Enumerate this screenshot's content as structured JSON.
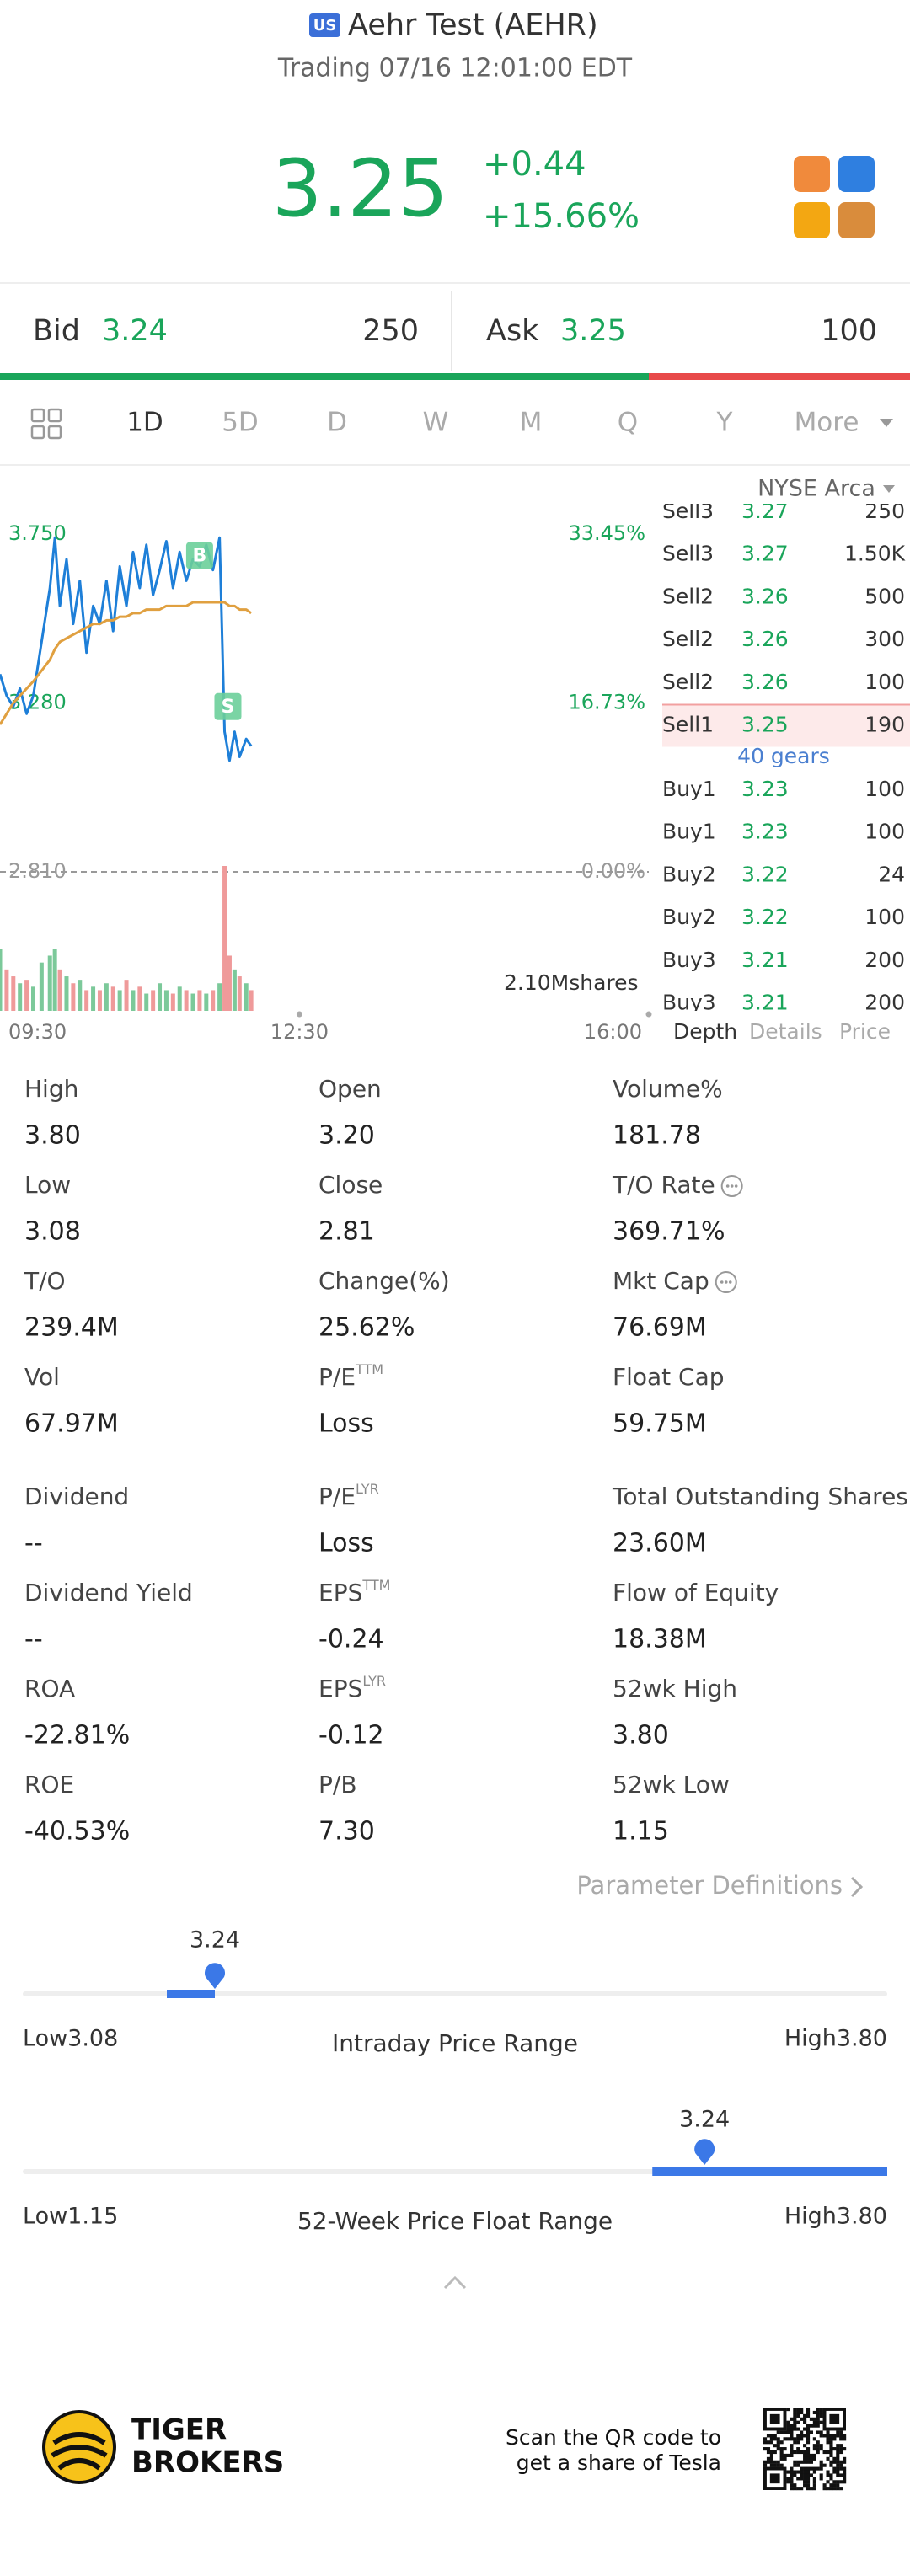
{
  "header": {
    "badge": "US",
    "title": "Aehr Test (AEHR)",
    "status": "Trading 07/16 12:01:00 EDT"
  },
  "quote": {
    "price": "3.25",
    "change": "+0.44",
    "change_pct": "+15.66%"
  },
  "bid_ask": {
    "bid_label": "Bid",
    "bid_price": "3.24",
    "bid_size": "250",
    "ask_label": "Ask",
    "ask_price": "3.25",
    "ask_size": "100"
  },
  "tabs": {
    "items": [
      "1D",
      "5D",
      "D",
      "W",
      "M",
      "Q",
      "Y",
      "More"
    ],
    "active": 0
  },
  "exchange": "NYSE Arca",
  "chart_data": {
    "type": "line",
    "x": [
      0,
      4,
      8,
      12,
      16,
      20,
      25,
      30,
      33,
      36,
      40,
      44,
      48,
      52,
      56,
      60,
      64,
      68,
      72,
      76,
      80,
      84,
      88,
      92,
      96,
      100,
      104,
      108,
      112,
      116,
      120,
      124,
      128,
      132,
      135,
      138,
      141,
      144,
      148,
      151
    ],
    "xlim": [
      0,
      390
    ],
    "xticks": [
      {
        "value": 0,
        "label": "09:30"
      },
      {
        "value": 180,
        "label": "12:30"
      },
      {
        "value": 390,
        "label": "16:00"
      }
    ],
    "ylim": [
      2.81,
      3.75
    ],
    "yticks": [
      {
        "value": 3.75,
        "label": "3.750"
      },
      {
        "value": 3.28,
        "label": "3.280"
      },
      {
        "value": 2.81,
        "label": "2.810"
      }
    ],
    "y2lim": [
      0,
      33.45
    ],
    "y2ticks": [
      {
        "value": 33.45,
        "label": "33.45%"
      },
      {
        "value": 16.73,
        "label": "16.73%"
      },
      {
        "value": 0,
        "label": "0.00%"
      }
    ],
    "prev_close": 2.81,
    "series": [
      {
        "color": "#1e7fd8",
        "values": [
          3.36,
          3.3,
          3.27,
          3.32,
          3.25,
          3.3,
          3.45,
          3.6,
          3.74,
          3.55,
          3.68,
          3.5,
          3.62,
          3.42,
          3.55,
          3.5,
          3.62,
          3.48,
          3.66,
          3.55,
          3.7,
          3.6,
          3.72,
          3.58,
          3.65,
          3.73,
          3.6,
          3.7,
          3.62,
          3.68,
          3.66,
          3.72,
          3.65,
          3.74,
          3.2,
          3.12,
          3.2,
          3.13,
          3.18,
          3.16
        ]
      },
      {
        "color": "#e0a040",
        "values": [
          3.22,
          3.25,
          3.28,
          3.3,
          3.32,
          3.34,
          3.37,
          3.4,
          3.43,
          3.45,
          3.46,
          3.47,
          3.48,
          3.49,
          3.5,
          3.5,
          3.51,
          3.51,
          3.52,
          3.52,
          3.53,
          3.53,
          3.54,
          3.54,
          3.54,
          3.55,
          3.55,
          3.55,
          3.55,
          3.56,
          3.56,
          3.56,
          3.56,
          3.56,
          3.56,
          3.55,
          3.55,
          3.54,
          3.54,
          3.53
        ]
      }
    ],
    "trades": [
      {
        "label": "B",
        "x": 120,
        "price": 3.69
      },
      {
        "label": "S",
        "x": 137,
        "price": 3.27
      }
    ],
    "volume": {
      "label": "2.10Mshares",
      "ylim": [
        0,
        2100000
      ],
      "values": [
        900000,
        600000,
        500000,
        400000,
        450000,
        350000,
        700000,
        800000,
        900000,
        600000,
        500000,
        400000,
        450000,
        300000,
        350000,
        300000,
        400000,
        350000,
        300000,
        450000,
        300000,
        350000,
        250000,
        300000,
        400000,
        300000,
        250000,
        350000,
        300000,
        250000,
        300000,
        250000,
        300000,
        400000,
        2100000,
        800000,
        600000,
        500000,
        400000,
        300000
      ]
    }
  },
  "order_book": {
    "sells": [
      [
        "Sell3",
        "3.27",
        "250"
      ],
      [
        "Sell3",
        "3.27",
        "1.50K"
      ],
      [
        "Sell2",
        "3.26",
        "500"
      ],
      [
        "Sell2",
        "3.26",
        "300"
      ],
      [
        "Sell2",
        "3.26",
        "100"
      ],
      [
        "Sell1",
        "3.25",
        "190"
      ]
    ],
    "gears": "40 gears",
    "buys": [
      [
        "Buy1",
        "3.23",
        "100"
      ],
      [
        "Buy1",
        "3.23",
        "100"
      ],
      [
        "Buy2",
        "3.22",
        "24"
      ],
      [
        "Buy2",
        "3.22",
        "100"
      ],
      [
        "Buy3",
        "3.21",
        "200"
      ],
      [
        "Buy3",
        "3.21",
        "200"
      ]
    ],
    "tabs": [
      "Depth",
      "Details",
      "Price"
    ],
    "active": 0
  },
  "stats": [
    {
      "label": "High",
      "value": "3.80"
    },
    {
      "label": "Open",
      "value": "3.20"
    },
    {
      "label": "Volume%",
      "value": "181.78"
    },
    {
      "label": "Low",
      "value": "3.08"
    },
    {
      "label": "Close",
      "value": "2.81"
    },
    {
      "label": "T/O Rate",
      "value": "369.71%",
      "info": true
    },
    {
      "label": "T/O",
      "value": "239.4M"
    },
    {
      "label": "Change(%)",
      "value": "25.62%"
    },
    {
      "label": "Mkt Cap",
      "value": "76.69M",
      "info": true
    },
    {
      "label": "Vol",
      "value": "67.97M"
    },
    {
      "label": "P/E",
      "sup": "TTM",
      "value": "Loss"
    },
    {
      "label": "Float Cap",
      "value": "59.75M"
    },
    {
      "label": "Dividend",
      "value": "--"
    },
    {
      "label": "P/E",
      "sup": "LYR",
      "value": "Loss"
    },
    {
      "label": "Total Outstanding Shares",
      "value": "23.60M"
    },
    {
      "label": "Dividend Yield",
      "value": "--"
    },
    {
      "label": "EPS",
      "sup": "TTM",
      "value": "-0.24"
    },
    {
      "label": "Flow of Equity",
      "value": "18.38M"
    },
    {
      "label": "ROA",
      "value": "-22.81%"
    },
    {
      "label": "EPS",
      "sup": "LYR",
      "value": "-0.12"
    },
    {
      "label": "52wk High",
      "value": "3.80"
    },
    {
      "label": "ROE",
      "value": "-40.53%"
    },
    {
      "label": "P/B",
      "value": "7.30"
    },
    {
      "label": "52wk Low",
      "value": "1.15"
    }
  ],
  "param_link": "Parameter Definitions",
  "ranges": [
    {
      "title": "Intraday Price Range",
      "low": 3.08,
      "high": 3.8,
      "current": 3.24,
      "bar_from": 3.2,
      "bar_to": 3.24,
      "low_label": "Low3.08",
      "high_label": "High3.80"
    },
    {
      "title": "52-Week Price Float Range",
      "low": 1.15,
      "high": 3.8,
      "current": 3.24,
      "bar_from": 3.08,
      "bar_to": 3.8,
      "low_label": "Low1.15",
      "high_label": "High3.80"
    }
  ],
  "footer": {
    "brand": [
      "TIGER",
      "BROKERS"
    ],
    "qr_text": [
      "Scan the QR code to",
      "get a share of Tesla"
    ]
  }
}
